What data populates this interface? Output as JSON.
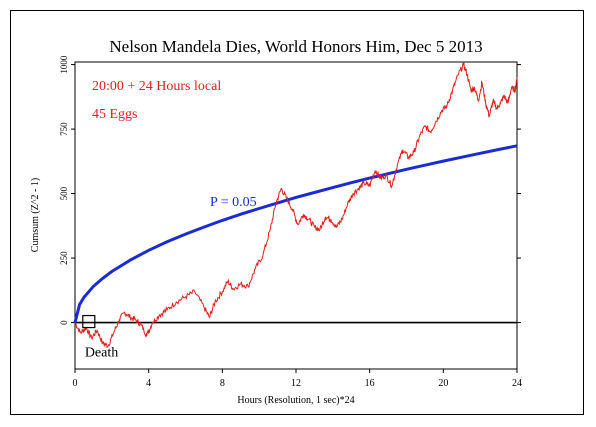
{
  "chart_data": {
    "type": "line",
    "title": "Nelson Mandela Dies, World Honors Him, Dec 5 2013",
    "xlabel": "Hours (Resolution, 1 sec)*24",
    "ylabel": "Cumsum (Z^2 - 1)",
    "xlim": [
      0,
      24
    ],
    "ylim": [
      -180,
      1010
    ],
    "x_ticks": [
      0,
      4,
      8,
      12,
      16,
      20,
      24
    ],
    "y_ticks": [
      0,
      250,
      500,
      750,
      1000
    ],
    "grid": false,
    "annotations": {
      "info_line1": "20:00 + 24 Hours local",
      "info_line2": "45 Eggs",
      "probability_label": "P = 0.05",
      "event_label": "Death"
    },
    "colors": {
      "cumsum": "#e0201b",
      "probability": "#1a2bd6",
      "baseline": "#000000",
      "text_red": "#e0201b",
      "text_blue": "#1a2bd6"
    },
    "series": [
      {
        "role": "cumulative-deviation",
        "x": [
          0,
          0.3,
          0.6,
          0.9,
          1.2,
          1.5,
          1.8,
          2.1,
          2.4,
          2.7,
          3.0,
          3.3,
          3.6,
          3.9,
          4.2,
          4.6,
          5.0,
          5.5,
          6.0,
          6.5,
          7.0,
          7.3,
          7.6,
          8.0,
          8.3,
          8.6,
          9.0,
          9.4,
          9.8,
          10.2,
          10.6,
          10.9,
          11.2,
          11.5,
          11.8,
          12.1,
          12.4,
          12.7,
          13.0,
          13.3,
          13.6,
          13.9,
          14.2,
          14.5,
          14.8,
          15.1,
          15.4,
          15.7,
          16.0,
          16.3,
          16.6,
          16.9,
          17.2,
          17.5,
          17.8,
          18.1,
          18.4,
          18.7,
          19.0,
          19.3,
          19.6,
          19.9,
          20.2,
          20.5,
          20.8,
          21.1,
          21.3,
          21.5,
          21.7,
          21.9,
          22.1,
          22.3,
          22.5,
          22.7,
          22.9,
          23.1,
          23.3,
          23.5,
          23.7,
          23.9,
          24.0
        ],
        "y": [
          0,
          -40,
          -20,
          -60,
          -30,
          -80,
          -90,
          -40,
          10,
          40,
          20,
          10,
          -10,
          -50,
          0,
          30,
          50,
          80,
          100,
          120,
          60,
          20,
          80,
          120,
          160,
          130,
          150,
          140,
          210,
          260,
          360,
          460,
          520,
          480,
          440,
          380,
          420,
          400,
          370,
          360,
          410,
          400,
          370,
          400,
          460,
          500,
          520,
          540,
          530,
          590,
          560,
          570,
          530,
          610,
          670,
          640,
          660,
          720,
          760,
          740,
          780,
          820,
          840,
          900,
          960,
          1000,
          960,
          900,
          910,
          860,
          930,
          850,
          800,
          860,
          830,
          850,
          880,
          850,
          910,
          900,
          950
        ]
      },
      {
        "role": "probability-envelope",
        "label": "P = 0.05",
        "x": [
          0,
          0.25,
          0.5,
          1,
          1.5,
          2,
          3,
          4,
          5,
          6,
          7,
          8,
          9,
          10,
          11,
          12,
          13,
          14,
          15,
          16,
          17,
          18,
          19,
          20,
          21,
          22,
          23,
          24
        ],
        "y": [
          0,
          70,
          99,
          140,
          171,
          198,
          242,
          280,
          313,
          343,
          370,
          396,
          420,
          442,
          464,
          485,
          504,
          523,
          542,
          560,
          577,
          594,
          610,
          626,
          641,
          656,
          671,
          685
        ]
      }
    ],
    "event_marker": {
      "x": 0.75,
      "y": 0
    }
  }
}
